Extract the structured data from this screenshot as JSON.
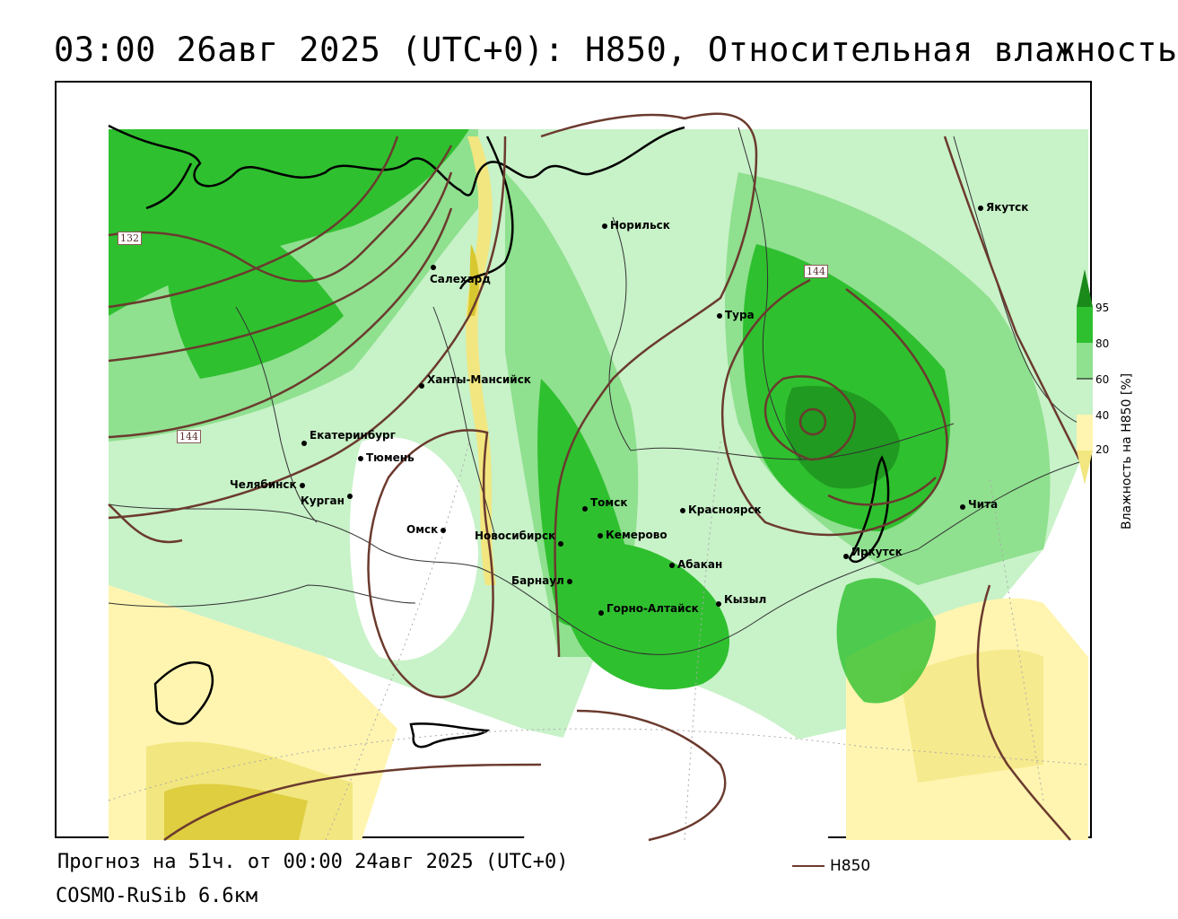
{
  "header": {
    "title": "03:00 26авг 2025 (UTC+0): H850, Относительная влажность"
  },
  "map": {
    "cities": [
      {
        "name": "Якутск"
      },
      {
        "name": "Норильск"
      },
      {
        "name": "Салехард"
      },
      {
        "name": "Тура"
      },
      {
        "name": "Ханты-Мансийск"
      },
      {
        "name": "Екатеринбург"
      },
      {
        "name": "Тюмень"
      },
      {
        "name": "Челябинск"
      },
      {
        "name": "Курган"
      },
      {
        "name": "Омск"
      },
      {
        "name": "Новосибирск"
      },
      {
        "name": "Томск"
      },
      {
        "name": "Красноярск"
      },
      {
        "name": "Кемерово"
      },
      {
        "name": "Абакан"
      },
      {
        "name": "Барнаул"
      },
      {
        "name": "Горно-Алтайск"
      },
      {
        "name": "Кызыл"
      },
      {
        "name": "Иркутск"
      },
      {
        "name": "Чита"
      }
    ],
    "isoline_labels": [
      "132",
      "144",
      "144"
    ]
  },
  "legend": {
    "colorbar_title": "Влажность на H850 [%]",
    "ticks": [
      "95",
      "80",
      "60",
      "40",
      "20"
    ],
    "line_label": "H850",
    "colors": {
      "c95": "#1a8a1a",
      "c80": "#2fc02f",
      "c60": "#8fe08f",
      "c50": "#c8f2c8",
      "c40": "#ffffff",
      "c30": "#fff5b0",
      "c20": "#f2e680",
      "c10": "#d8c830",
      "isoline": "#6b3a2e"
    }
  },
  "footer": {
    "forecast": "Прогноз на 51ч. от 00:00 24авг 2025 (UTC+0)",
    "model": "COSMO-RuSib 6.6км"
  }
}
